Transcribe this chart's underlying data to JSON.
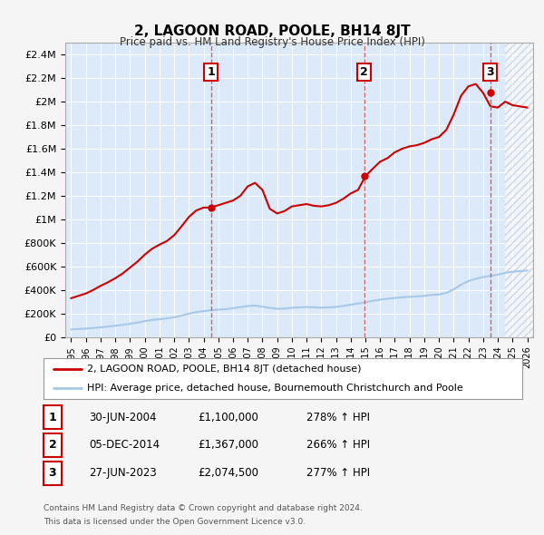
{
  "title": "2, LAGOON ROAD, POOLE, BH14 8JT",
  "subtitle": "Price paid vs. HM Land Registry's House Price Index (HPI)",
  "ylim": [
    0,
    2500000
  ],
  "yticks": [
    0,
    200000,
    400000,
    600000,
    800000,
    1000000,
    1200000,
    1400000,
    1600000,
    1800000,
    2000000,
    2200000,
    2400000
  ],
  "ytick_labels": [
    "£0",
    "£200K",
    "£400K",
    "£600K",
    "£800K",
    "£1M",
    "£1.2M",
    "£1.4M",
    "£1.6M",
    "£1.8M",
    "£2M",
    "£2.2M",
    "£2.4M"
  ],
  "xlim_start": 1994.6,
  "xlim_end": 2026.4,
  "hpi_color": "#a8c8e8",
  "price_color": "#cc0000",
  "dashed_color": "#cc6666",
  "sale_dates": [
    2004.5,
    2014.92,
    2023.49
  ],
  "sale_values": [
    1100000,
    1367000,
    2074500
  ],
  "sale_labels": [
    "1",
    "2",
    "3"
  ],
  "sale_info": [
    {
      "num": "1",
      "date": "30-JUN-2004",
      "price": "£1,100,000",
      "hpi": "278% ↑ HPI"
    },
    {
      "num": "2",
      "date": "05-DEC-2014",
      "price": "£1,367,000",
      "hpi": "266% ↑ HPI"
    },
    {
      "num": "3",
      "date": "27-JUN-2023",
      "price": "£2,074,500",
      "hpi": "277% ↑ HPI"
    }
  ],
  "legend_line1": "2, LAGOON ROAD, POOLE, BH14 8JT (detached house)",
  "legend_line2": "HPI: Average price, detached house, Bournemouth Christchurch and Poole",
  "footer1": "Contains HM Land Registry data © Crown copyright and database right 2024.",
  "footer2": "This data is licensed under the Open Government Licence v3.0.",
  "plot_bg_color": "#dce9f8",
  "grid_color": "#ffffff",
  "fig_bg_color": "#f5f5f5",
  "future_start": 2024.5,
  "hpi_years": [
    1995,
    1995.5,
    1996,
    1996.5,
    1997,
    1997.5,
    1998,
    1998.5,
    1999,
    1999.5,
    2000,
    2000.5,
    2001,
    2001.5,
    2002,
    2002.5,
    2003,
    2003.5,
    2004,
    2004.5,
    2005,
    2005.5,
    2006,
    2006.5,
    2007,
    2007.5,
    2008,
    2008.5,
    2009,
    2009.5,
    2010,
    2010.5,
    2011,
    2011.5,
    2012,
    2012.5,
    2013,
    2013.5,
    2014,
    2014.5,
    2015,
    2015.5,
    2016,
    2016.5,
    2017,
    2017.5,
    2018,
    2018.5,
    2019,
    2019.5,
    2020,
    2020.5,
    2021,
    2021.5,
    2022,
    2022.5,
    2023,
    2023.5,
    2024,
    2024.5,
    2025,
    2025.5,
    2026
  ],
  "hpi_vals": [
    65000,
    68000,
    72000,
    77000,
    83000,
    89000,
    96000,
    103000,
    113000,
    123000,
    135000,
    145000,
    152000,
    158000,
    168000,
    183000,
    198000,
    212000,
    220000,
    228000,
    233000,
    237000,
    245000,
    255000,
    263000,
    268000,
    258000,
    248000,
    240000,
    242000,
    248000,
    252000,
    255000,
    252000,
    250000,
    252000,
    256000,
    265000,
    275000,
    285000,
    295000,
    308000,
    318000,
    325000,
    332000,
    338000,
    342000,
    345000,
    350000,
    358000,
    362000,
    375000,
    405000,
    445000,
    475000,
    495000,
    510000,
    520000,
    530000,
    545000,
    555000,
    560000,
    565000
  ],
  "red_years": [
    1995,
    1995.5,
    1996,
    1996.5,
    1997,
    1997.5,
    1998,
    1998.5,
    1999,
    1999.5,
    2000,
    2000.5,
    2001,
    2001.5,
    2002,
    2002.5,
    2003,
    2003.5,
    2004,
    2004.5,
    2005,
    2005.5,
    2006,
    2006.5,
    2007,
    2007.5,
    2008,
    2008.5,
    2009,
    2009.5,
    2010,
    2010.5,
    2011,
    2011.5,
    2012,
    2012.5,
    2013,
    2013.5,
    2014,
    2014.5,
    2015,
    2015.5,
    2016,
    2016.5,
    2017,
    2017.5,
    2018,
    2018.5,
    2019,
    2019.5,
    2020,
    2020.5,
    2021,
    2021.5,
    2022,
    2022.5,
    2023,
    2023.5,
    2024,
    2024.5,
    2025,
    2025.5,
    2026
  ],
  "red_vals": [
    330000,
    350000,
    370000,
    400000,
    435000,
    465000,
    500000,
    540000,
    590000,
    640000,
    700000,
    750000,
    785000,
    815000,
    865000,
    940000,
    1020000,
    1075000,
    1100000,
    1100000,
    1120000,
    1140000,
    1160000,
    1200000,
    1280000,
    1310000,
    1250000,
    1090000,
    1050000,
    1070000,
    1110000,
    1120000,
    1130000,
    1115000,
    1110000,
    1120000,
    1140000,
    1175000,
    1220000,
    1250000,
    1367000,
    1430000,
    1490000,
    1520000,
    1570000,
    1600000,
    1620000,
    1630000,
    1650000,
    1680000,
    1700000,
    1760000,
    1890000,
    2050000,
    2130000,
    2150000,
    2074500,
    1960000,
    1950000,
    2000000,
    1970000,
    1960000,
    1950000
  ]
}
